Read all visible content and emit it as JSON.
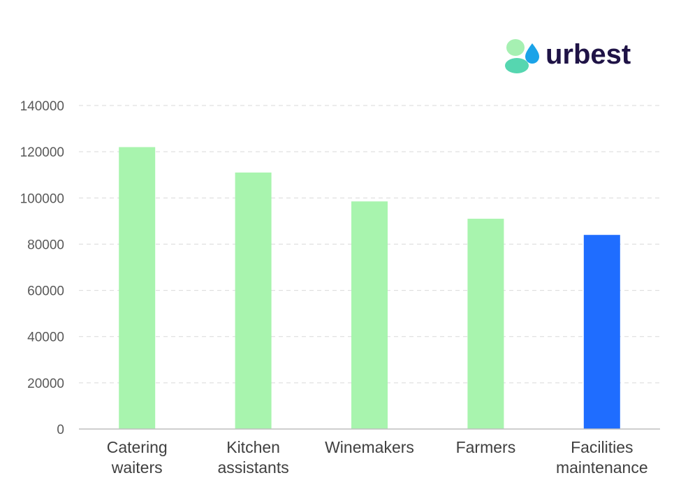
{
  "logo": {
    "text": "urbest",
    "colors": {
      "text": "#1f1346",
      "leaf_light": "#a6f0b2",
      "leaf_teal": "#56d6b0",
      "drop": "#1aa3e8"
    }
  },
  "chart_data": {
    "type": "bar",
    "title": "",
    "xlabel": "",
    "ylabel": "",
    "ylim": [
      0,
      140000
    ],
    "yticks": [
      0,
      20000,
      40000,
      60000,
      80000,
      100000,
      120000,
      140000
    ],
    "grid": true,
    "categories": [
      [
        "Catering",
        "waiters"
      ],
      [
        "Kitchen",
        "assistants"
      ],
      [
        "Winemakers"
      ],
      [
        "Farmers"
      ],
      [
        "Facilities",
        "maintenance"
      ]
    ],
    "values": [
      122000,
      111000,
      98500,
      91000,
      84000
    ],
    "bar_colors": [
      "#a8f4ae",
      "#a8f4ae",
      "#a8f4ae",
      "#a8f4ae",
      "#1f6dff"
    ]
  }
}
